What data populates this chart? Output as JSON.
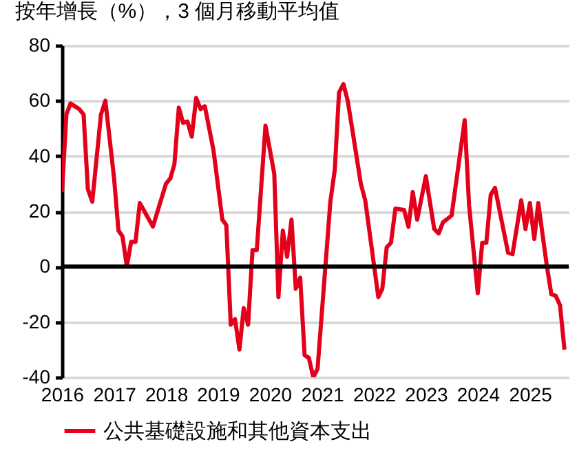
{
  "chart_data": {
    "type": "line",
    "title": "按年增長（%），3 個月移動平均值",
    "x": [
      "2016-01",
      "2016-02",
      "2016-03",
      "2016-05",
      "2016-06",
      "2016-07",
      "2016-08",
      "2016-10",
      "2016-11",
      "2017-01",
      "2017-02",
      "2017-03",
      "2017-04",
      "2017-05",
      "2017-06",
      "2017-07",
      "2017-10",
      "2018-01",
      "2018-02",
      "2018-03",
      "2018-04",
      "2018-05",
      "2018-06",
      "2018-07",
      "2018-08",
      "2018-09",
      "2018-10",
      "2018-12",
      "2019-02",
      "2019-03",
      "2019-04",
      "2019-05",
      "2019-06",
      "2019-07",
      "2019-08",
      "2019-09",
      "2019-10",
      "2019-12",
      "2020-02",
      "2020-03",
      "2020-04",
      "2020-05",
      "2020-06",
      "2020-07",
      "2020-08",
      "2020-09",
      "2020-10",
      "2020-11",
      "2020-12",
      "2021-03",
      "2021-04",
      "2021-05",
      "2021-06",
      "2021-07",
      "2021-08",
      "2021-10",
      "2021-11",
      "2022-02",
      "2022-03",
      "2022-04",
      "2022-05",
      "2022-06",
      "2022-08",
      "2022-09",
      "2022-10",
      "2022-11",
      "2023-01",
      "2023-03",
      "2023-04",
      "2023-05",
      "2023-07",
      "2023-10",
      "2023-11",
      "2024-01",
      "2024-02",
      "2024-03",
      "2024-04",
      "2024-05",
      "2024-08",
      "2024-09",
      "2024-11",
      "2024-12",
      "2025-01",
      "2025-02",
      "2025-03",
      "2025-05",
      "2025-06",
      "2025-07",
      "2025-08",
      "2025-09"
    ],
    "series": [
      {
        "name": "公共基礎設施和其他資本支出",
        "color": "#e2001a",
        "values": [
          27,
          55,
          59,
          57,
          55,
          28,
          23.5,
          55,
          60,
          32,
          13,
          11,
          0,
          9,
          9,
          23,
          14.5,
          30,
          32,
          37,
          57.5,
          52,
          52.5,
          47,
          61,
          57,
          58,
          42,
          17,
          15,
          -21,
          -19,
          -30,
          -15,
          -21,
          6,
          6,
          51,
          33.5,
          -11,
          13,
          3.6,
          17,
          -8,
          -4,
          -32,
          -33,
          -40,
          -37,
          23.5,
          35,
          63,
          66,
          60,
          50,
          30,
          24,
          -11,
          -8,
          7,
          8.6,
          21,
          20.5,
          14.4,
          27,
          17,
          32.7,
          13.6,
          12,
          16,
          18.5,
          53,
          22,
          -9.6,
          8.6,
          8.6,
          26,
          28.5,
          5,
          4.5,
          24,
          13.6,
          23,
          10,
          23,
          0,
          -10,
          -10.5,
          -14,
          -30
        ]
      }
    ],
    "xlim": [
      "2016-01",
      "2025-10"
    ],
    "xticks": [
      "2016",
      "2017",
      "2018",
      "2019",
      "2020",
      "2021",
      "2022",
      "2023",
      "2024",
      "2025"
    ],
    "ylim": [
      -40,
      80
    ],
    "yticks": [
      -40,
      -20,
      0,
      20,
      40,
      60,
      80
    ],
    "ref_lines": [
      {
        "axis": "y",
        "value": 0,
        "color": "#000000"
      }
    ],
    "grid": "y",
    "legend": "bottom",
    "line_style": "solid",
    "marker": "none"
  }
}
